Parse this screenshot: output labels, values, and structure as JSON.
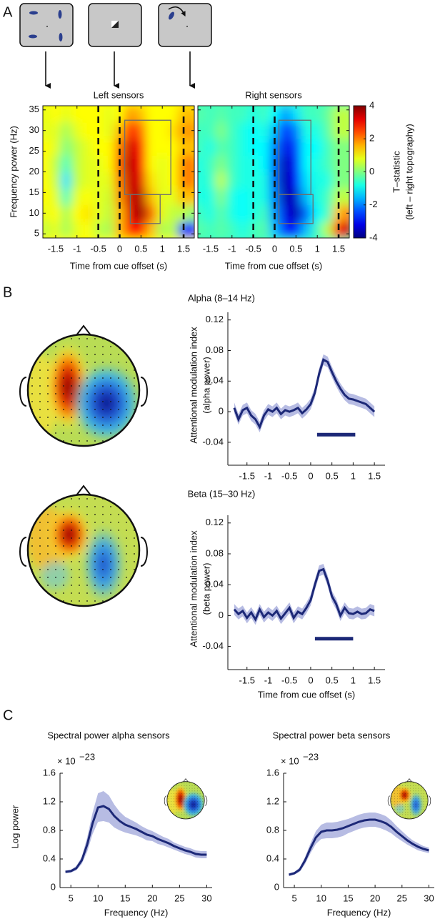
{
  "panel_labels": [
    "A",
    "B",
    "C"
  ],
  "chart_data": [
    {
      "type": "heatmap",
      "title": "Left sensors",
      "ylabel": "Frequency power (Hz)",
      "xlabel": "Time from cue offset (s)",
      "x": [
        -1.75,
        -1.5,
        -1.25,
        -1,
        -0.75,
        -0.5,
        -0.25,
        0,
        0.25,
        0.5,
        0.75,
        1,
        1.25,
        1.5,
        1.75
      ],
      "y": [
        6,
        10,
        14,
        18,
        22,
        26,
        30,
        34
      ],
      "z": [
        [
          0.5,
          0.8,
          0.3,
          0.8,
          1,
          0.5,
          0.3,
          1.5,
          2.8,
          3.0,
          1.5,
          0.3,
          0.5,
          -2.5,
          -3
        ],
        [
          0.8,
          1,
          0.3,
          1,
          1.2,
          0.8,
          0.5,
          1.5,
          3.2,
          3.8,
          2.2,
          0.8,
          0.5,
          0.5,
          0
        ],
        [
          1,
          0.8,
          -0.5,
          0.8,
          1,
          0.8,
          0.6,
          1.8,
          3.4,
          3.6,
          1.5,
          0.8,
          0.8,
          1.5,
          1.5
        ],
        [
          1,
          0.6,
          -1.2,
          0.5,
          0.8,
          0.8,
          0.8,
          2,
          3.5,
          3.2,
          1.2,
          0.8,
          1,
          2,
          2
        ],
        [
          1,
          0.5,
          -0.5,
          0.5,
          0.8,
          0.8,
          1,
          2.2,
          3.6,
          3.0,
          1,
          0.8,
          1,
          2,
          2
        ],
        [
          1,
          0.8,
          0,
          0.5,
          0.8,
          1,
          1,
          2,
          3.4,
          2.8,
          1,
          1,
          1,
          1.5,
          1.5
        ],
        [
          0.8,
          0.8,
          0.3,
          0.8,
          1,
          1,
          0.8,
          1.5,
          2.8,
          2.2,
          1,
          1,
          1.2,
          1.8,
          1.8
        ],
        [
          0.8,
          1,
          0.8,
          1,
          1,
          1,
          0.8,
          1,
          1.8,
          1.5,
          1,
          1,
          1,
          1.5,
          1.5
        ]
      ],
      "xlim": [
        -1.8,
        1.75
      ],
      "ylim": [
        4,
        36
      ],
      "xticks": [
        -1.5,
        -1,
        -0.5,
        0,
        0.5,
        1,
        1.5
      ],
      "yticks": [
        5,
        10,
        15,
        20,
        25,
        30,
        35
      ],
      "show_ytick_labels": true,
      "clim": [
        -4,
        4
      ],
      "vlines": [
        -0.5,
        0,
        1.5
      ],
      "boxes": [
        {
          "x": [
            0.12,
            1.2
          ],
          "y": [
            14.5,
            32.5
          ]
        },
        {
          "x": [
            0.25,
            0.95
          ],
          "y": [
            7.5,
            14.5
          ]
        }
      ]
    },
    {
      "type": "heatmap",
      "title": "Right sensors",
      "xlabel": "Time from cue offset (s)",
      "x": [
        -1.75,
        -1.5,
        -1.25,
        -1,
        -0.75,
        -0.5,
        -0.25,
        0,
        0.25,
        0.5,
        0.75,
        1,
        1.25,
        1.5,
        1.75
      ],
      "y": [
        6,
        10,
        14,
        18,
        22,
        26,
        30,
        34
      ],
      "z": [
        [
          -0.3,
          -0.5,
          -0.3,
          -0.5,
          -0.8,
          -0.5,
          -0.3,
          -1.5,
          -2.8,
          -2.8,
          -1.5,
          -0.5,
          0.5,
          3.0,
          3.5
        ],
        [
          -0.5,
          -0.8,
          -0.3,
          -0.8,
          -1,
          -0.8,
          -0.5,
          -1.8,
          -3.2,
          -3.6,
          -2.2,
          -1,
          -0.5,
          1.5,
          2
        ],
        [
          -0.8,
          -0.8,
          0,
          -0.8,
          -1,
          -0.8,
          -0.8,
          -2,
          -3.6,
          -3.4,
          -1.5,
          -0.8,
          -0.5,
          0.5,
          0.5
        ],
        [
          -0.8,
          -0.6,
          0.5,
          -0.5,
          -0.8,
          -0.8,
          -0.8,
          -2.2,
          -3.7,
          -3.0,
          -1.2,
          -0.8,
          -0.8,
          0,
          0
        ],
        [
          -0.8,
          -0.5,
          0,
          -0.5,
          -0.8,
          -0.8,
          -1,
          -2.2,
          -3.6,
          -2.8,
          -1,
          -0.8,
          -0.5,
          0,
          0
        ],
        [
          -0.5,
          -0.8,
          -0.3,
          -0.5,
          -0.8,
          -1,
          -1,
          -2,
          -3.2,
          -2.5,
          -1,
          -1,
          -0.5,
          0,
          0
        ],
        [
          -0.5,
          -0.5,
          0,
          -0.5,
          -0.8,
          -1,
          -0.8,
          -1.5,
          -2.8,
          -2,
          -0.8,
          -0.8,
          -0.3,
          0.5,
          0.5
        ],
        [
          -0.3,
          -0.5,
          -0.3,
          -0.5,
          -0.5,
          -0.8,
          -0.5,
          -1,
          -1.8,
          -1.2,
          -0.5,
          -0.5,
          -0.2,
          0.5,
          0.5
        ]
      ],
      "xlim": [
        -1.8,
        1.75
      ],
      "ylim": [
        4,
        36
      ],
      "xticks": [
        -1.5,
        -1,
        -0.5,
        0,
        0.5,
        1,
        1.5
      ],
      "yticks": [
        5,
        10,
        15,
        20,
        25,
        30,
        35
      ],
      "show_ytick_labels": false,
      "clim": [
        -4,
        4
      ],
      "vlines": [
        -0.5,
        0,
        1.5
      ],
      "boxes": [
        {
          "x": [
            0.1,
            0.85
          ],
          "y": [
            14.5,
            32.5
          ]
        },
        {
          "x": [
            0.1,
            0.9
          ],
          "y": [
            7.5,
            14.5
          ]
        }
      ],
      "colorbar": {
        "ticks": [
          -4,
          -2,
          0,
          2,
          4
        ],
        "label": [
          "T–statistic",
          "(left – right topography)"
        ]
      }
    },
    {
      "type": "line",
      "title": "Alpha (8–14 Hz)",
      "ylabel": [
        "Attentional modulation index",
        "(alpha power)"
      ],
      "x": [
        -1.8,
        -1.7,
        -1.6,
        -1.5,
        -1.4,
        -1.3,
        -1.2,
        -1.1,
        -1.0,
        -0.9,
        -0.8,
        -0.7,
        -0.6,
        -0.5,
        -0.4,
        -0.3,
        -0.2,
        -0.1,
        0,
        0.1,
        0.2,
        0.3,
        0.4,
        0.5,
        0.6,
        0.7,
        0.8,
        0.9,
        1.0,
        1.1,
        1.2,
        1.3,
        1.4,
        1.5
      ],
      "values": [
        0.005,
        -0.01,
        0.002,
        0.005,
        -0.005,
        -0.01,
        -0.02,
        -0.005,
        0.003,
        0.0,
        0.005,
        -0.003,
        0.002,
        0.0,
        0.002,
        0.005,
        -0.002,
        0.003,
        0.01,
        0.025,
        0.05,
        0.068,
        0.065,
        0.052,
        0.04,
        0.03,
        0.022,
        0.017,
        0.016,
        0.014,
        0.012,
        0.01,
        0.005,
        0.0
      ],
      "error": 0.007,
      "color": "#1c2877",
      "band_color": "#aab0de",
      "xlim": [
        -1.95,
        1.75
      ],
      "ylim": [
        -0.07,
        0.13
      ],
      "xticks": [
        -1.5,
        -1,
        -0.5,
        0,
        0.5,
        1,
        1.5
      ],
      "yticks": [
        -0.04,
        0,
        0.04,
        0.08,
        0.12
      ],
      "significance": {
        "x": [
          0.15,
          1.05
        ],
        "y": -0.03
      }
    },
    {
      "type": "line",
      "title": "Beta (15–30 Hz)",
      "ylabel": [
        "Attentional modulation index",
        "(beta power)"
      ],
      "xlabel": "Time from cue offset (s)",
      "x": [
        -1.8,
        -1.7,
        -1.6,
        -1.5,
        -1.4,
        -1.3,
        -1.2,
        -1.1,
        -1.0,
        -0.9,
        -0.8,
        -0.7,
        -0.6,
        -0.5,
        -0.4,
        -0.3,
        -0.2,
        -0.1,
        0,
        0.1,
        0.2,
        0.3,
        0.4,
        0.5,
        0.6,
        0.7,
        0.8,
        0.9,
        1.0,
        1.1,
        1.2,
        1.3,
        1.4,
        1.5
      ],
      "values": [
        0.008,
        0.002,
        0.006,
        -0.003,
        0.004,
        -0.005,
        0.008,
        -0.002,
        0.004,
        0.0,
        0.006,
        -0.004,
        0.003,
        0.01,
        -0.003,
        0.005,
        0.002,
        0.01,
        0.02,
        0.04,
        0.058,
        0.06,
        0.045,
        0.025,
        0.015,
        0.0,
        0.01,
        0.003,
        0.002,
        0.005,
        0.002,
        0.003,
        0.008,
        0.006
      ],
      "error": 0.007,
      "color": "#1c2877",
      "band_color": "#aab0de",
      "xlim": [
        -1.95,
        1.75
      ],
      "ylim": [
        -0.07,
        0.13
      ],
      "xticks": [
        -1.5,
        -1,
        -0.5,
        0,
        0.5,
        1,
        1.5
      ],
      "yticks": [
        -0.04,
        0,
        0.04,
        0.08,
        0.12
      ],
      "significance": {
        "x": [
          0.1,
          1.0
        ],
        "y": -0.03
      }
    },
    {
      "type": "line",
      "title": "Spectral power alpha sensors",
      "ylabel": [
        "Log power"
      ],
      "xlabel": "Frequency (Hz)",
      "y_offset_text": {
        "base": "× 10",
        "exponent": "−23"
      },
      "x": [
        4,
        5,
        6,
        7,
        8,
        9,
        10,
        11,
        12,
        13,
        14,
        15,
        16,
        17,
        18,
        19,
        20,
        21,
        22,
        23,
        24,
        25,
        26,
        27,
        28,
        29,
        30
      ],
      "values": [
        0.22,
        0.23,
        0.27,
        0.38,
        0.6,
        0.9,
        1.12,
        1.14,
        1.1,
        1.0,
        0.93,
        0.88,
        0.85,
        0.82,
        0.78,
        0.74,
        0.72,
        0.68,
        0.65,
        0.62,
        0.58,
        0.55,
        0.52,
        0.5,
        0.47,
        0.46,
        0.46
      ],
      "errors": [
        0.02,
        0.02,
        0.03,
        0.05,
        0.1,
        0.15,
        0.2,
        0.21,
        0.19,
        0.16,
        0.13,
        0.11,
        0.1,
        0.09,
        0.08,
        0.08,
        0.07,
        0.07,
        0.06,
        0.06,
        0.05,
        0.05,
        0.05,
        0.05,
        0.05,
        0.05,
        0.05
      ],
      "color": "#1c2877",
      "band_color": "#aab0de",
      "xlim": [
        3,
        31
      ],
      "ylim": [
        0,
        1.6
      ],
      "xticks": [
        5,
        10,
        15,
        20,
        25,
        30
      ],
      "yticks": [
        0,
        0.4,
        0.8,
        1.2,
        1.6
      ]
    },
    {
      "type": "line",
      "title": "Spectral power beta sensors",
      "xlabel": "Frequency (Hz)",
      "y_offset_text": {
        "base": "× 10",
        "exponent": "−23"
      },
      "x": [
        4,
        5,
        6,
        7,
        8,
        9,
        10,
        11,
        12,
        13,
        14,
        15,
        16,
        17,
        18,
        19,
        20,
        21,
        22,
        23,
        24,
        25,
        26,
        27,
        28,
        29,
        30
      ],
      "values": [
        0.18,
        0.2,
        0.25,
        0.38,
        0.55,
        0.7,
        0.78,
        0.8,
        0.8,
        0.81,
        0.83,
        0.86,
        0.89,
        0.92,
        0.94,
        0.95,
        0.95,
        0.93,
        0.9,
        0.85,
        0.78,
        0.72,
        0.66,
        0.61,
        0.57,
        0.54,
        0.52
      ],
      "errors": [
        0.02,
        0.02,
        0.03,
        0.05,
        0.07,
        0.09,
        0.1,
        0.11,
        0.11,
        0.11,
        0.11,
        0.1,
        0.1,
        0.1,
        0.1,
        0.1,
        0.1,
        0.1,
        0.1,
        0.09,
        0.08,
        0.07,
        0.06,
        0.05,
        0.05,
        0.04,
        0.04
      ],
      "color": "#1c2877",
      "band_color": "#aab0de",
      "xlim": [
        3,
        31
      ],
      "ylim": [
        0,
        1.6
      ],
      "xticks": [
        5,
        10,
        15,
        20,
        25,
        30
      ],
      "yticks": [
        0,
        0.4,
        0.8,
        1.2,
        1.6
      ]
    }
  ]
}
